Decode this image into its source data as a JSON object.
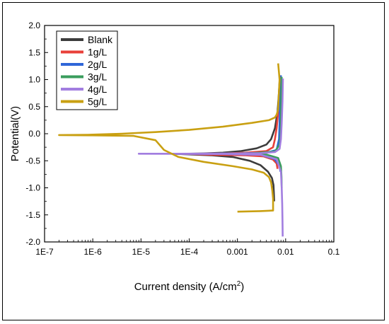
{
  "chart_data": {
    "type": "line",
    "xlabel": "Current density (A/cm",
    "xlabel_sup": "2",
    "xlabel_end": ")",
    "ylabel": "Potential(V)",
    "xscale": "log",
    "xlim": [
      1e-07,
      0.1
    ],
    "ylim": [
      -2.0,
      2.0
    ],
    "x_ticks": [
      1e-07,
      1e-06,
      1e-05,
      0.0001,
      0.001,
      0.01,
      0.1
    ],
    "x_tick_labels": [
      "1E-7",
      "1E-6",
      "1E-5",
      "1E-4",
      "0.001",
      "0.01",
      "0.1"
    ],
    "y_ticks": [
      -2.0,
      -1.5,
      -1.0,
      -0.5,
      0.0,
      0.5,
      1.0,
      1.5,
      2.0
    ],
    "y_tick_labels": [
      "-2.0",
      "-1.5",
      "-1.0",
      "-0.5",
      "0.0",
      "0.5",
      "1.0",
      "1.5",
      "2.0"
    ],
    "grid": false,
    "legend_position": "top-left",
    "series": [
      {
        "name": "Blank",
        "color": "#3c3c3c",
        "points": [
          [
            0.0075,
            0.95
          ],
          [
            0.0072,
            0.7
          ],
          [
            0.0068,
            0.4
          ],
          [
            0.006,
            0.1
          ],
          [
            0.005,
            -0.1
          ],
          [
            0.004,
            -0.2
          ],
          [
            0.0025,
            -0.27
          ],
          [
            0.0012,
            -0.32
          ],
          [
            0.0005,
            -0.35
          ],
          [
            0.0002,
            -0.365
          ],
          [
            0.0001,
            -0.37
          ],
          [
            5e-05,
            -0.372
          ],
          [
            9e-05,
            -0.38
          ],
          [
            0.0003,
            -0.4
          ],
          [
            0.0008,
            -0.43
          ],
          [
            0.0018,
            -0.5
          ],
          [
            0.003,
            -0.58
          ],
          [
            0.0043,
            -0.7
          ],
          [
            0.0052,
            -0.82
          ],
          [
            0.0056,
            -0.95
          ],
          [
            0.0057,
            -1.1
          ],
          [
            0.0058,
            -1.25
          ]
        ]
      },
      {
        "name": "1g/L",
        "color": "#e8403a",
        "points": [
          [
            0.0078,
            1.0
          ],
          [
            0.0075,
            0.7
          ],
          [
            0.007,
            0.4
          ],
          [
            0.0065,
            0.1
          ],
          [
            0.006,
            -0.1
          ],
          [
            0.0055,
            -0.25
          ],
          [
            0.004,
            -0.32
          ],
          [
            0.0015,
            -0.35
          ],
          [
            0.0005,
            -0.365
          ],
          [
            0.0002,
            -0.37
          ],
          [
            9e-05,
            -0.372
          ],
          [
            0.0003,
            -0.39
          ],
          [
            0.0015,
            -0.4
          ],
          [
            0.0035,
            -0.42
          ],
          [
            0.0055,
            -0.48
          ],
          [
            0.0065,
            -0.55
          ],
          [
            0.0068,
            -0.65
          ]
        ]
      },
      {
        "name": "2g/L",
        "color": "#2f66d8",
        "points": [
          [
            0.008,
            1.08
          ],
          [
            0.0078,
            0.8
          ],
          [
            0.0076,
            0.5
          ],
          [
            0.0075,
            0.2
          ],
          [
            0.0073,
            -0.1
          ],
          [
            0.0065,
            -0.3
          ],
          [
            0.004,
            -0.35
          ],
          [
            0.001,
            -0.365
          ],
          [
            0.0002,
            -0.37
          ],
          [
            0.0006,
            -0.375
          ],
          [
            0.003,
            -0.39
          ],
          [
            0.006,
            -0.47
          ],
          [
            0.0075,
            -0.6
          ],
          [
            0.0078,
            -0.7
          ]
        ]
      },
      {
        "name": "3g/L",
        "color": "#3a9d5d",
        "points": [
          [
            0.0083,
            1.05
          ],
          [
            0.0081,
            0.7
          ],
          [
            0.008,
            0.3
          ],
          [
            0.0079,
            0.0
          ],
          [
            0.0075,
            -0.2
          ],
          [
            0.006,
            -0.33
          ],
          [
            0.002,
            -0.36
          ],
          [
            0.0003,
            -0.37
          ],
          [
            0.001,
            -0.375
          ],
          [
            0.004,
            -0.385
          ],
          [
            0.007,
            -0.45
          ],
          [
            0.008,
            -0.6
          ],
          [
            0.0082,
            -0.8
          ],
          [
            0.0083,
            -1.0
          ]
        ]
      },
      {
        "name": "4g/L",
        "color": "#a27ee0",
        "points": [
          [
            0.0088,
            1.02
          ],
          [
            0.0086,
            0.6
          ],
          [
            0.0083,
            0.2
          ],
          [
            0.008,
            -0.1
          ],
          [
            0.0075,
            -0.28
          ],
          [
            0.006,
            -0.34
          ],
          [
            0.003,
            -0.36
          ],
          [
            0.001,
            -0.365
          ],
          [
            0.0002,
            -0.368
          ],
          [
            5e-05,
            -0.37
          ],
          [
            9e-06,
            -0.37
          ],
          [
            5e-05,
            -0.372
          ],
          [
            0.0005,
            -0.375
          ],
          [
            0.003,
            -0.39
          ],
          [
            0.0065,
            -0.47
          ],
          [
            0.008,
            -0.7
          ],
          [
            0.0083,
            -1.0
          ],
          [
            0.0085,
            -1.3
          ],
          [
            0.0086,
            -1.6
          ],
          [
            0.0087,
            -1.9
          ]
        ]
      },
      {
        "name": "5g/L",
        "color": "#c9a012",
        "points": [
          [
            0.007,
            1.3
          ],
          [
            0.0075,
            1.0
          ],
          [
            0.0072,
            0.7
          ],
          [
            0.007,
            0.45
          ],
          [
            0.0065,
            0.35
          ],
          [
            0.006,
            0.3
          ],
          [
            0.0045,
            0.25
          ],
          [
            0.002,
            0.2
          ],
          [
            0.0005,
            0.13
          ],
          [
            0.0001,
            0.07
          ],
          [
            2e-05,
            0.03
          ],
          [
            4e-06,
            0.0
          ],
          [
            8e-07,
            -0.02
          ],
          [
            2e-07,
            -0.025
          ],
          [
            1e-06,
            -0.03
          ],
          [
            7e-06,
            -0.04
          ],
          [
            2e-05,
            -0.12
          ],
          [
            3e-05,
            -0.3
          ],
          [
            6e-05,
            -0.43
          ],
          [
            0.0002,
            -0.52
          ],
          [
            0.0008,
            -0.6
          ],
          [
            0.002,
            -0.66
          ],
          [
            0.0035,
            -0.72
          ],
          [
            0.0045,
            -0.8
          ],
          [
            0.005,
            -0.9
          ],
          [
            0.0053,
            -1.05
          ],
          [
            0.0055,
            -1.2
          ],
          [
            0.0055,
            -1.42
          ],
          [
            0.003,
            -1.43
          ],
          [
            0.001,
            -1.44
          ]
        ]
      }
    ]
  }
}
